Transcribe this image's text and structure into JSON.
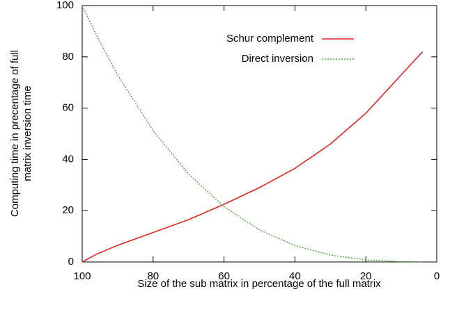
{
  "chart_data": {
    "type": "line",
    "xlabel": "Size of the sub matrix in percentage of the full matrix",
    "ylabel": [
      "Computing time in precentage of full",
      "matrix inversion time"
    ],
    "x": [
      100,
      96,
      90,
      80,
      70,
      60,
      50,
      40,
      30,
      20,
      10,
      4
    ],
    "series": [
      {
        "name": "Schur complement",
        "color": "#e02424",
        "dash": false,
        "values": [
          0,
          3,
          6.5,
          11.5,
          16.5,
          22.5,
          29,
          36.5,
          46,
          58,
          73,
          82
        ]
      },
      {
        "name": "Direct inversion",
        "color": "#3c9a2c",
        "dash": true,
        "values": [
          100,
          88.5,
          72.9,
          51.2,
          34.3,
          21.6,
          12.5,
          6.4,
          2.7,
          0.8,
          0.1,
          0.01
        ]
      }
    ],
    "xlim": [
      100,
      0
    ],
    "xticks": [
      100,
      80,
      60,
      40,
      20,
      0
    ],
    "ylim": [
      0,
      100
    ],
    "yticks": [
      0,
      20,
      40,
      60,
      80,
      100
    ],
    "legend": "top-right"
  }
}
